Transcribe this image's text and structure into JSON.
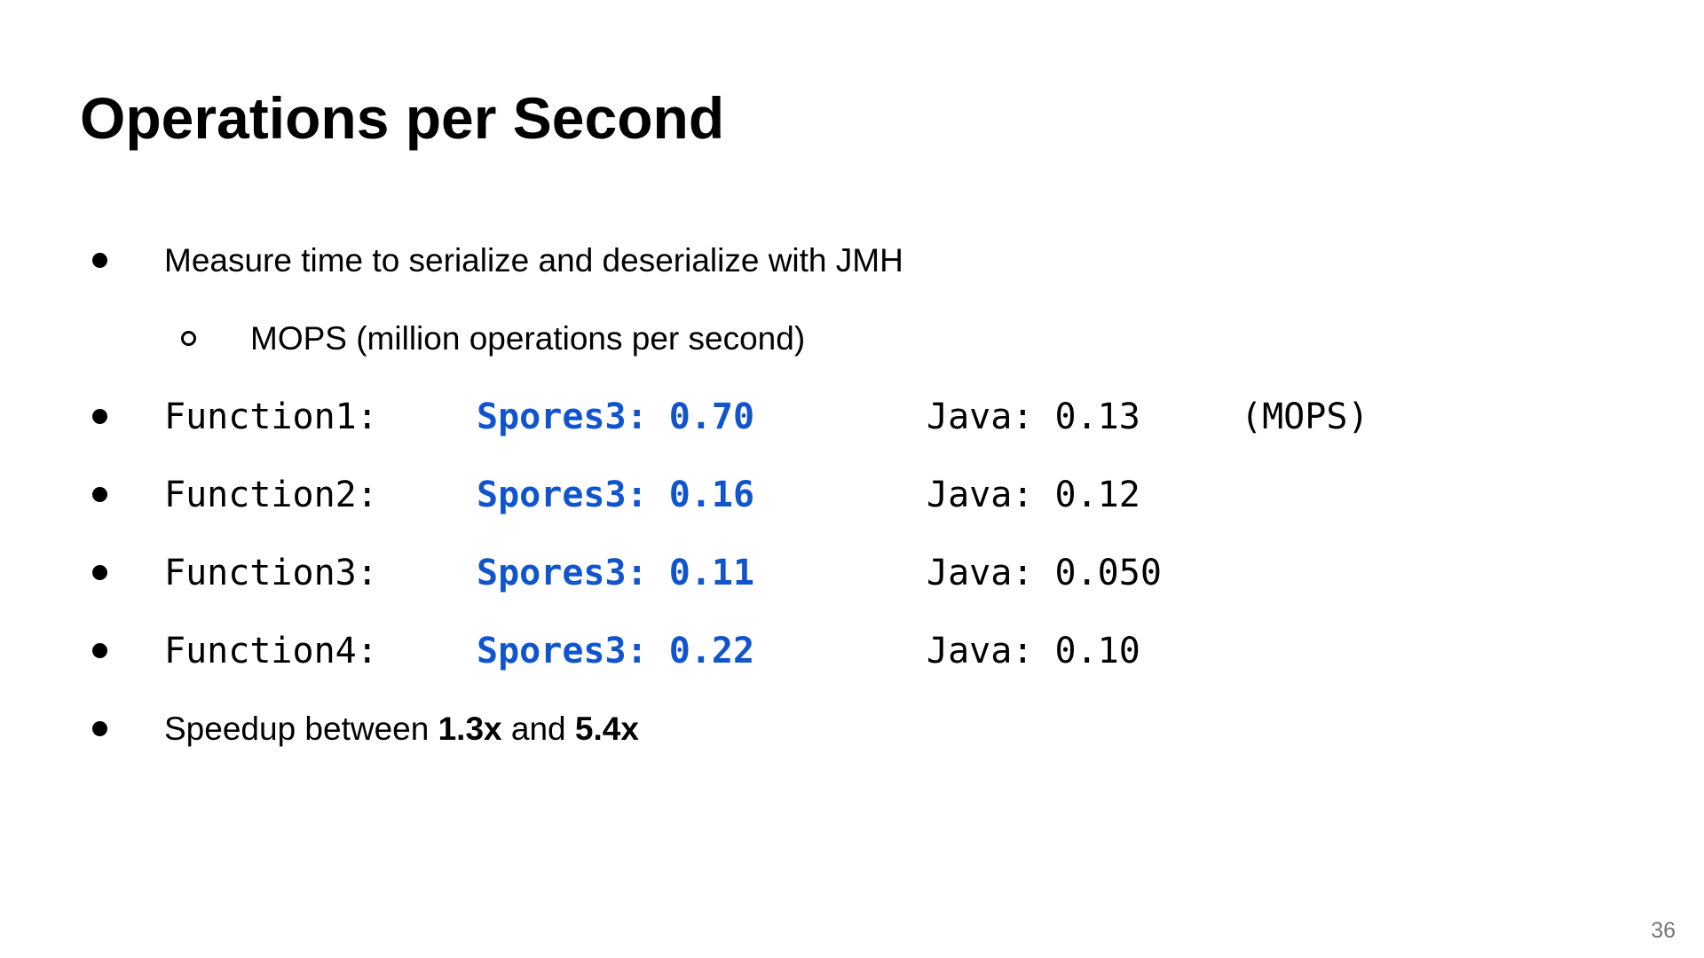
{
  "slide": {
    "title": "Operations per Second",
    "page_number": "36",
    "colors": {
      "accent_blue": "#1155cc",
      "text": "#000000",
      "page_number_gray": "#757575"
    },
    "bullet1": "Measure time to serialize and deserialize with JMH",
    "sub_bullet": "MOPS (million operations per second)",
    "functions": [
      {
        "label": "Function1:",
        "spores": "Spores3: 0.70",
        "java": "Java: 0.13",
        "suffix": "(MOPS)"
      },
      {
        "label": "Function2:",
        "spores": "Spores3: 0.16",
        "java": "Java: 0.12",
        "suffix": ""
      },
      {
        "label": "Function3:",
        "spores": "Spores3: 0.11",
        "java": "Java: 0.050",
        "suffix": ""
      },
      {
        "label": "Function4:",
        "spores": "Spores3: 0.22",
        "java": "Java: 0.10",
        "suffix": ""
      }
    ],
    "speedup": {
      "prefix": "Speedup between ",
      "low": "1.3x",
      "mid": " and ",
      "high": "5.4x"
    }
  }
}
